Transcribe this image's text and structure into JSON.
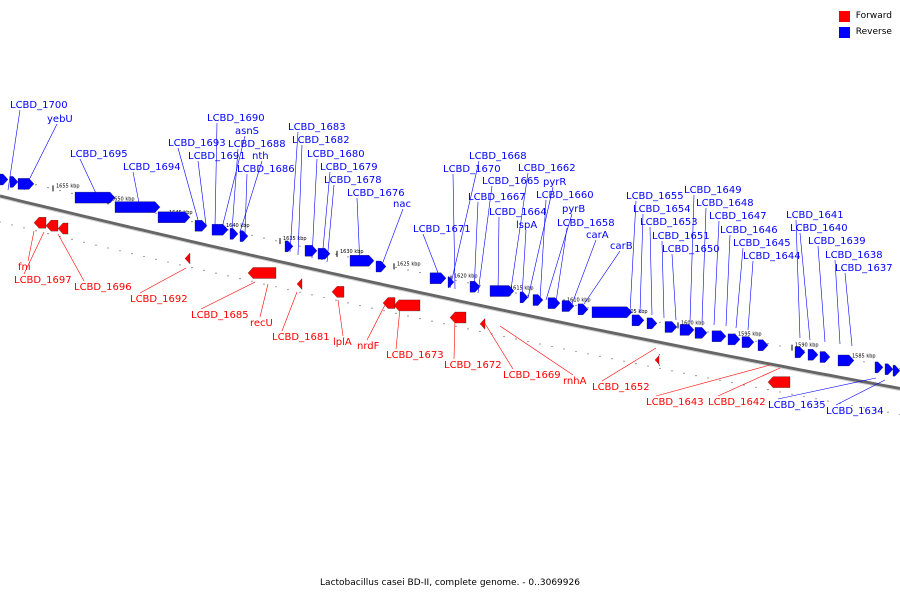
{
  "caption": "Lactobacillus casei BD-II, complete genome. - 0..3069926",
  "legend": [
    {
      "label": "Forward",
      "color": "#ff0000"
    },
    {
      "label": "Reverse",
      "color": "#0000ff"
    }
  ],
  "colors": {
    "forward": "#ff0000",
    "reverse": "#0000ff",
    "backbone": "#666666"
  },
  "ticks": [
    "1655 kbp",
    "1650 kbp",
    "1645 kbp",
    "1640 kbp",
    "1635 kbp",
    "1630 kbp",
    "1625 kbp",
    "1620 kbp",
    "1615 kbp",
    "1610 kbp",
    "1605 kbp",
    "1600 kbp",
    "1595 kbp",
    "1590 kbp",
    "1585 kbp"
  ],
  "reverse_labels": [
    "LCBD_1700",
    "yebU",
    "LCBD_1695",
    "LCBD_1694",
    "LCBD_1693",
    "LCBD_1691",
    "LCBD_1690",
    "asnS",
    "LCBD_1688",
    "nth",
    "LCBD_1686",
    "LCBD_1683",
    "LCBD_1682",
    "LCBD_1680",
    "LCBD_1679",
    "LCBD_1678",
    "LCBD_1676",
    "nac",
    "LCBD_1671",
    "LCBD_1668",
    "LCBD_1670",
    "LCBD_1665",
    "LCBD_1667",
    "LCBD_1664",
    "lspA",
    "LCBD_1662",
    "pyrR",
    "LCBD_1660",
    "pyrB",
    "LCBD_1658",
    "carA",
    "carB",
    "LCBD_1655",
    "LCBD_1654",
    "LCBD_1653",
    "LCBD_1651",
    "LCBD_1650",
    "LCBD_1649",
    "LCBD_1648",
    "LCBD_1647",
    "LCBD_1646",
    "LCBD_1645",
    "LCBD_1644",
    "LCBD_1641",
    "LCBD_1640",
    "LCBD_1639",
    "LCBD_1638",
    "LCBD_1637",
    "LCBD_1635",
    "LCBD_1634"
  ],
  "forward_labels": [
    "fni",
    "LCBD_1697",
    "LCBD_1696",
    "LCBD_1692",
    "LCBD_1685",
    "recU",
    "LCBD_1681",
    "lplA",
    "nrdF",
    "LCBD_1673",
    "LCBD_1672",
    "LCBD_1669",
    "rnhA",
    "LCBD_1652",
    "LCBD_1643",
    "LCBD_1642"
  ]
}
